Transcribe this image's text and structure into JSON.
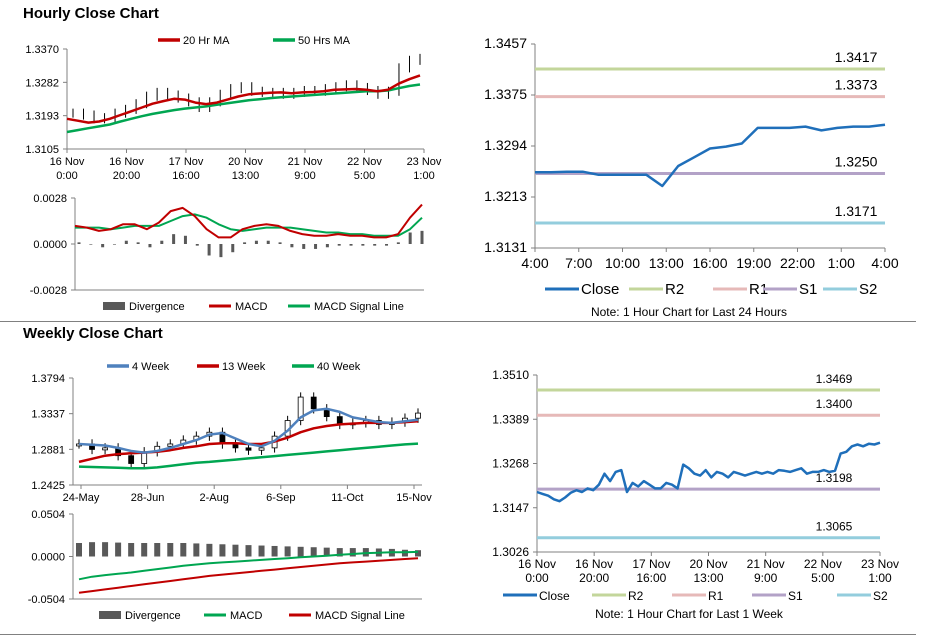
{
  "sections": {
    "hourly_title": "Hourly Close Chart",
    "weekly_title": "Weekly Close Chart"
  },
  "chart_data": [
    {
      "id": "hourly-price",
      "type": "line",
      "title": "",
      "legend": [
        "20 Hr MA",
        "50 Hrs MA"
      ],
      "colors": {
        "20 Hr MA": "#c00000",
        "50 Hrs MA": "#00a651"
      },
      "y_ticks": [
        "1.3370",
        "1.3282",
        "1.3193",
        "1.3105"
      ],
      "ylim": [
        1.3105,
        1.337
      ],
      "x_ticks": [
        [
          "16 Nov",
          "0:00"
        ],
        [
          "16 Nov",
          "20:00"
        ],
        [
          "17 Nov",
          "16:00"
        ],
        [
          "20 Nov",
          "13:00"
        ],
        [
          "21 Nov",
          "9:00"
        ],
        [
          "22 Nov",
          "5:00"
        ],
        [
          "23 Nov",
          "1:00"
        ]
      ],
      "series": [
        {
          "name": "Close",
          "values": [
            1.32,
            1.3195,
            1.3185,
            1.3188,
            1.32,
            1.321,
            1.3225,
            1.3245,
            1.3255,
            1.3248,
            1.324,
            1.323,
            1.3215,
            1.323,
            1.325,
            1.3265,
            1.327,
            1.3258,
            1.3255,
            1.3255,
            1.325,
            1.3255,
            1.326,
            1.3258,
            1.3265,
            1.327,
            1.3275,
            1.3268,
            1.326,
            1.325,
            1.3258,
            1.332,
            1.334,
            1.3345
          ]
        },
        {
          "name": "20 Hr MA",
          "values": [
            1.3185,
            1.318,
            1.3175,
            1.3178,
            1.3185,
            1.3195,
            1.3205,
            1.3215,
            1.3225,
            1.3232,
            1.3238,
            1.3236,
            1.3228,
            1.3224,
            1.3228,
            1.3236,
            1.3244,
            1.325,
            1.3252,
            1.3254,
            1.3255,
            1.3253,
            1.3255,
            1.3256,
            1.3258,
            1.3262,
            1.3263,
            1.3264,
            1.3262,
            1.3258,
            1.3262,
            1.3278,
            1.329,
            1.33
          ]
        },
        {
          "name": "50 Hrs MA",
          "values": [
            1.315,
            1.3155,
            1.316,
            1.3165,
            1.317,
            1.3178,
            1.3185,
            1.3192,
            1.3198,
            1.3203,
            1.3208,
            1.3212,
            1.3215,
            1.3218,
            1.3222,
            1.3226,
            1.323,
            1.3234,
            1.3237,
            1.324,
            1.3242,
            1.3244,
            1.3246,
            1.3248,
            1.325,
            1.3252,
            1.3254,
            1.3256,
            1.3258,
            1.3258,
            1.326,
            1.3266,
            1.3272,
            1.3276
          ]
        }
      ]
    },
    {
      "id": "hourly-macd",
      "type": "line",
      "title": "",
      "legend": [
        "Divergence",
        "MACD",
        "MACD Signal Line"
      ],
      "colors": {
        "Divergence": "#595959",
        "MACD": "#c00000",
        "MACD Signal Line": "#00a651"
      },
      "y_ticks": [
        "0.0028",
        "0.0000",
        "-0.0028"
      ],
      "ylim": [
        -0.0028,
        0.0028
      ],
      "series": [
        {
          "name": "MACD",
          "values": [
            0.0011,
            0.001,
            0.0008,
            0.0009,
            0.0012,
            0.0012,
            0.0009,
            0.0013,
            0.002,
            0.0022,
            0.0017,
            0.0009,
            0.0004,
            0.0004,
            0.0009,
            0.0011,
            0.0012,
            0.0011,
            0.0008,
            0.0006,
            0.0005,
            0.0005,
            0.0006,
            0.0005,
            0.0005,
            0.0004,
            0.0004,
            0.0006,
            0.0016,
            0.0024
          ]
        },
        {
          "name": "MACD Signal Line",
          "values": [
            0.001,
            0.001,
            0.001,
            0.0009,
            0.001,
            0.0011,
            0.0011,
            0.0011,
            0.0014,
            0.0017,
            0.0018,
            0.0016,
            0.0012,
            0.0009,
            0.0008,
            0.0009,
            0.001,
            0.001,
            0.001,
            0.0009,
            0.0008,
            0.0007,
            0.0007,
            0.0006,
            0.0006,
            0.0005,
            0.0005,
            0.0005,
            0.0009,
            0.0016
          ]
        },
        {
          "name": "Divergence",
          "values": [
            0.0001,
            0.0,
            -0.0002,
            0.0,
            0.0002,
            0.0001,
            -0.0002,
            0.0002,
            0.0006,
            0.0005,
            -0.0001,
            -0.0007,
            -0.0008,
            -0.0005,
            0.0001,
            0.0002,
            0.0002,
            0.0001,
            -0.0002,
            -0.0003,
            -0.0003,
            -0.0002,
            -0.0001,
            -0.0001,
            -0.0001,
            -0.0001,
            -0.0001,
            0.0001,
            0.0007,
            0.0008
          ]
        }
      ]
    },
    {
      "id": "hourly-24h",
      "type": "line",
      "title": "",
      "note": "Note: 1 Hour Chart for Last 24 Hours",
      "y_ticks": [
        "1.3457",
        "1.3375",
        "1.3294",
        "1.3213",
        "1.3131"
      ],
      "ylim": [
        1.3131,
        1.3457
      ],
      "x_ticks": [
        "4:00",
        "7:00",
        "10:00",
        "13:00",
        "16:00",
        "19:00",
        "22:00",
        "1:00",
        "4:00"
      ],
      "legend": [
        "Close",
        "R2",
        "R1",
        "S1",
        "S2"
      ],
      "colors": {
        "Close": "#1f6fba",
        "R2": "#c3d69b",
        "R1": "#e6b9b8",
        "S1": "#b3a2c7",
        "S2": "#93cddd"
      },
      "levels": [
        {
          "name": "R2",
          "value": 1.3417,
          "label": "1.3417"
        },
        {
          "name": "R1",
          "value": 1.3373,
          "label": "1.3373"
        },
        {
          "name": "S1",
          "value": 1.325,
          "label": "1.3250"
        },
        {
          "name": "S2",
          "value": 1.3171,
          "label": "1.3171"
        }
      ],
      "series": [
        {
          "name": "Close",
          "values": [
            1.3252,
            1.3252,
            1.3253,
            1.3253,
            1.3248,
            1.3248,
            1.3248,
            1.3248,
            1.323,
            1.3262,
            1.3276,
            1.329,
            1.3293,
            1.3298,
            1.3323,
            1.3323,
            1.3323,
            1.3325,
            1.3319,
            1.3323,
            1.3325,
            1.3325,
            1.3328
          ]
        }
      ]
    },
    {
      "id": "weekly-price",
      "type": "line",
      "title": "",
      "legend": [
        "4 Week",
        "13 Week",
        "40 Week"
      ],
      "colors": {
        "4 Week": "#4f81bd",
        "13 Week": "#c00000",
        "40 Week": "#00a651"
      },
      "y_ticks": [
        "1.3794",
        "1.3337",
        "1.2881",
        "1.2425"
      ],
      "ylim": [
        1.2425,
        1.3794
      ],
      "x_ticks": [
        "24-May",
        "28-Jun",
        "2-Aug",
        "6-Sep",
        "11-Oct",
        "15-Nov"
      ],
      "series": [
        {
          "name": "Close",
          "values": [
            1.295,
            1.288,
            1.29,
            1.28,
            1.27,
            1.285,
            1.292,
            1.295,
            1.3,
            1.305,
            1.31,
            1.295,
            1.29,
            1.287,
            1.29,
            1.305,
            1.325,
            1.355,
            1.34,
            1.33,
            1.32,
            1.322,
            1.325,
            1.32,
            1.323,
            1.328,
            1.3345
          ]
        },
        {
          "name": "4 Week",
          "values": [
            1.295,
            1.294,
            1.293,
            1.29,
            1.286,
            1.284,
            1.286,
            1.29,
            1.295,
            1.3,
            1.307,
            1.309,
            1.302,
            1.295,
            1.292,
            1.299,
            1.312,
            1.329,
            1.338,
            1.34,
            1.336,
            1.329,
            1.326,
            1.323,
            1.322,
            1.324,
            1.326
          ]
        },
        {
          "name": "13 Week",
          "values": [
            1.272,
            1.276,
            1.28,
            1.282,
            1.283,
            1.284,
            1.285,
            1.287,
            1.29,
            1.292,
            1.295,
            1.296,
            1.296,
            1.295,
            1.295,
            1.298,
            1.303,
            1.31,
            1.315,
            1.318,
            1.32,
            1.321,
            1.322,
            1.322,
            1.322,
            1.323,
            1.324
          ]
        },
        {
          "name": "40 Week",
          "values": [
            1.266,
            1.2655,
            1.265,
            1.2645,
            1.264,
            1.264,
            1.265,
            1.267,
            1.269,
            1.271,
            1.272,
            1.2735,
            1.275,
            1.2765,
            1.278,
            1.2795,
            1.281,
            1.2825,
            1.284,
            1.2855,
            1.287,
            1.2885,
            1.29,
            1.2915,
            1.293,
            1.2945,
            1.2955
          ]
        }
      ]
    },
    {
      "id": "weekly-macd",
      "type": "line",
      "title": "",
      "legend": [
        "Divergence",
        "MACD",
        "MACD Signal Line"
      ],
      "colors": {
        "Divergence": "#595959",
        "MACD": "#00a651",
        "MACD Signal Line": "#c00000"
      },
      "y_ticks": [
        "0.0504",
        "0.0000",
        "-0.0504"
      ],
      "ylim": [
        -0.0504,
        0.0504
      ],
      "series": [
        {
          "name": "MACD",
          "values": [
            -0.027,
            -0.024,
            -0.022,
            -0.0205,
            -0.019,
            -0.017,
            -0.015,
            -0.013,
            -0.011,
            -0.0095,
            -0.008,
            -0.007,
            -0.006,
            -0.005,
            -0.004,
            -0.003,
            -0.002,
            -0.001,
            0.0,
            0.001,
            0.002,
            0.003,
            0.004,
            0.0045,
            0.005,
            0.005,
            0.0055
          ]
        },
        {
          "name": "MACD Signal Line",
          "values": [
            -0.043,
            -0.041,
            -0.039,
            -0.037,
            -0.035,
            -0.033,
            -0.031,
            -0.029,
            -0.027,
            -0.025,
            -0.023,
            -0.0215,
            -0.02,
            -0.0185,
            -0.017,
            -0.0155,
            -0.014,
            -0.0125,
            -0.011,
            -0.0095,
            -0.008,
            -0.007,
            -0.006,
            -0.005,
            -0.004,
            -0.003,
            -0.002
          ]
        },
        {
          "name": "Divergence",
          "values": [
            0.016,
            0.017,
            0.017,
            0.0165,
            0.016,
            0.016,
            0.016,
            0.016,
            0.016,
            0.0155,
            0.015,
            0.0145,
            0.014,
            0.0135,
            0.013,
            0.0125,
            0.012,
            0.0115,
            0.011,
            0.0105,
            0.01,
            0.01,
            0.01,
            0.0095,
            0.009,
            0.008,
            0.0075
          ]
        }
      ]
    },
    {
      "id": "weekly-1w",
      "type": "line",
      "title": "",
      "note": "Note: 1 Hour Chart for Last 1 Week",
      "y_ticks": [
        "1.3510",
        "1.3389",
        "1.3268",
        "1.3147",
        "1.3026"
      ],
      "ylim": [
        1.3026,
        1.351
      ],
      "x_ticks": [
        [
          "16 Nov",
          "0:00"
        ],
        [
          "16 Nov",
          "20:00"
        ],
        [
          "17 Nov",
          "16:00"
        ],
        [
          "20 Nov",
          "13:00"
        ],
        [
          "21 Nov",
          "9:00"
        ],
        [
          "22 Nov",
          "5:00"
        ],
        [
          "23 Nov",
          "1:00"
        ]
      ],
      "legend": [
        "Close",
        "R2",
        "R1",
        "S1",
        "S2"
      ],
      "colors": {
        "Close": "#1f6fba",
        "R2": "#c3d69b",
        "R1": "#e6b9b8",
        "S1": "#b3a2c7",
        "S2": "#93cddd"
      },
      "levels": [
        {
          "name": "R2",
          "value": 1.3469,
          "label": "1.3469"
        },
        {
          "name": "R1",
          "value": 1.34,
          "label": "1.3400"
        },
        {
          "name": "S1",
          "value": 1.3198,
          "label": "1.3198"
        },
        {
          "name": "S2",
          "value": 1.3065,
          "label": "1.3065"
        }
      ],
      "series": [
        {
          "name": "Close",
          "values": [
            1.319,
            1.3185,
            1.318,
            1.317,
            1.3165,
            1.3175,
            1.3188,
            1.3195,
            1.319,
            1.32,
            1.3195,
            1.321,
            1.324,
            1.322,
            1.3245,
            1.325,
            1.319,
            1.3215,
            1.3205,
            1.322,
            1.321,
            1.32,
            1.32,
            1.3215,
            1.321,
            1.32,
            1.3265,
            1.3255,
            1.324,
            1.3235,
            1.325,
            1.323,
            1.3245,
            1.324,
            1.323,
            1.3245,
            1.324,
            1.3235,
            1.324,
            1.3245,
            1.324,
            1.3245,
            1.324,
            1.325,
            1.3248,
            1.3245,
            1.325,
            1.3255,
            1.324,
            1.3245,
            1.3245,
            1.325,
            1.3245,
            1.3248,
            1.3295,
            1.33,
            1.3315,
            1.332,
            1.3315,
            1.3322,
            1.332,
            1.3325
          ]
        }
      ]
    }
  ]
}
